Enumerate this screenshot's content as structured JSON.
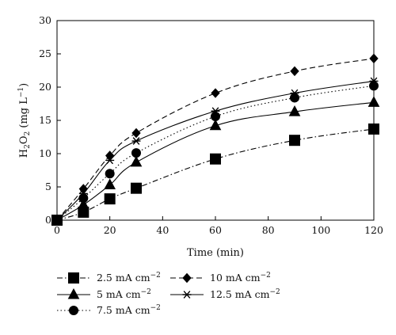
{
  "chart_data": {
    "type": "line",
    "xlabel": "Time (min)",
    "ylabel": "H₂O₂ (mg L⁻¹)",
    "xlim": [
      0,
      120
    ],
    "ylim": [
      0,
      30
    ],
    "xticks": [
      0,
      20,
      40,
      60,
      80,
      100,
      120
    ],
    "yticks": [
      0,
      5,
      10,
      15,
      20,
      25,
      30
    ],
    "grid": false,
    "legend_position": "bottom",
    "x": [
      0,
      10,
      20,
      30,
      60,
      90,
      120
    ],
    "series": [
      {
        "name": "2.5 mA cm⁻²",
        "unit_base": "2.5 mA cm",
        "unit_exp": "−2",
        "marker": "square",
        "line": "dash-dot",
        "values": [
          0,
          1.2,
          3.2,
          4.8,
          9.2,
          12.0,
          13.7
        ]
      },
      {
        "name": "5 mA cm⁻²",
        "unit_base": "5 mA cm",
        "unit_exp": "−2",
        "marker": "triangle",
        "line": "solid",
        "values": [
          0,
          2.3,
          5.3,
          8.7,
          14.2,
          16.3,
          17.7
        ]
      },
      {
        "name": "7.5 mA cm⁻²",
        "unit_base": "7.5 mA cm",
        "unit_exp": "−2",
        "marker": "circle",
        "line": "dotted",
        "values": [
          0,
          3.3,
          7.0,
          10.1,
          15.6,
          18.4,
          20.2
        ]
      },
      {
        "name": "10 mA cm⁻²",
        "unit_base": "10 mA cm",
        "unit_exp": "−2",
        "marker": "diamond",
        "line": "dashed",
        "values": [
          0,
          4.7,
          9.7,
          13.1,
          19.1,
          22.4,
          24.3
        ]
      },
      {
        "name": "12.5 mA cm⁻²",
        "unit_base": "12.5 mA cm",
        "unit_exp": "−2",
        "marker": "star",
        "line": "solid",
        "values": [
          0,
          4.0,
          9.0,
          11.9,
          16.4,
          19.1,
          20.9
        ]
      }
    ],
    "ylabel_parts": {
      "base": "H",
      "sub1": "2",
      "mid": "O",
      "sub2": "2",
      "unit": " (mg L",
      "exp": "−1",
      "close": ")"
    }
  }
}
